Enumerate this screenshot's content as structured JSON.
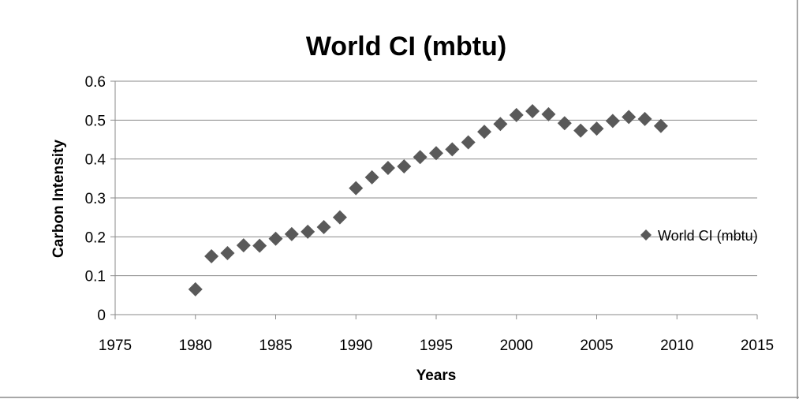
{
  "chart_data": {
    "type": "scatter",
    "title": "World CI (mbtu)",
    "xlabel": "Years",
    "ylabel": "Carbon Intensity",
    "xlim": [
      1975,
      2015
    ],
    "ylim": [
      0,
      0.6
    ],
    "x_ticks": [
      1975,
      1980,
      1985,
      1990,
      1995,
      2000,
      2005,
      2010,
      2015
    ],
    "y_ticks": [
      0,
      0.1,
      0.2,
      0.3,
      0.4,
      0.5,
      0.6
    ],
    "x_tick_labels": [
      "1975",
      "1980",
      "1985",
      "1990",
      "1995",
      "2000",
      "2005",
      "2010",
      "2015"
    ],
    "y_tick_labels": [
      "0",
      "0.1",
      "0.2",
      "0.3",
      "0.4",
      "0.5",
      "0.6"
    ],
    "grid": "horizontal",
    "legend_position": "right",
    "marker": "diamond",
    "series_color": "#595959",
    "series": [
      {
        "name": "World CI (mbtu)",
        "x": [
          1980,
          1981,
          1982,
          1983,
          1984,
          1985,
          1986,
          1987,
          1988,
          1989,
          1990,
          1991,
          1992,
          1993,
          1994,
          1995,
          1996,
          1997,
          1998,
          1999,
          2000,
          2001,
          2002,
          2003,
          2004,
          2005,
          2006,
          2007,
          2008,
          2009
        ],
        "y": [
          0.065,
          0.15,
          0.158,
          0.178,
          0.177,
          0.195,
          0.207,
          0.213,
          0.225,
          0.25,
          0.325,
          0.353,
          0.377,
          0.381,
          0.405,
          0.415,
          0.425,
          0.443,
          0.47,
          0.49,
          0.513,
          0.523,
          0.515,
          0.492,
          0.473,
          0.478,
          0.498,
          0.508,
          0.503,
          0.485
        ]
      }
    ]
  }
}
